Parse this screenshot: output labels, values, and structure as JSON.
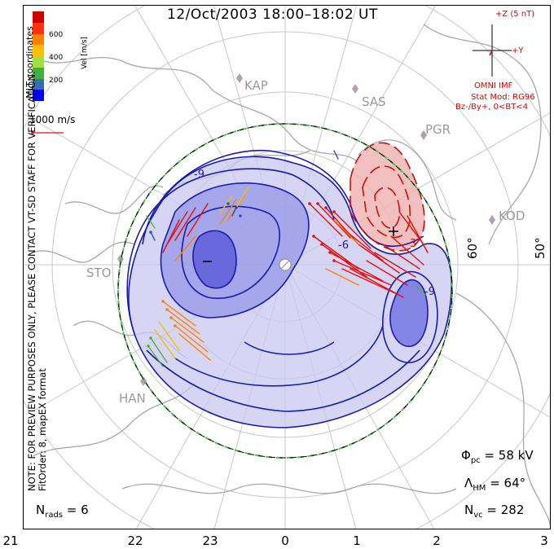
{
  "title": "12/Oct/2003  18:00–18:02 UT",
  "mlt_ticks": [
    "21",
    "22",
    "23",
    "0",
    "1",
    "2",
    "3"
  ],
  "lat_labels": [
    "60°",
    "50°"
  ],
  "stations": [
    "KAP",
    "SAS",
    "PGR",
    "KOD",
    "STO",
    "HAN"
  ],
  "colorbar": {
    "label": "Vel [m/s]",
    "ticks": [
      "600",
      "400",
      "200"
    ],
    "colors": [
      "#d00000",
      "#ff3010",
      "#ff8000",
      "#ffc000",
      "#a0e040",
      "#40b040",
      "#3070b0",
      "#0000ff"
    ]
  },
  "coord_label": "MLT coordinates",
  "vector_scale": "1000 m/s",
  "imf": {
    "z_label": "+Z (5 nT)",
    "y_label": "+Y",
    "source": "OMNI IMF",
    "stat_mod": "Stat Mod: RG96",
    "condition": "Bz-/By+, 0<BT<4"
  },
  "stats": {
    "phi_pc": "58 kV",
    "lambda_hm": "64°",
    "n_vc": "282",
    "n_rads": "6"
  },
  "notes": {
    "line1": "NOTE: FOR PREVIEW PURPOSES ONLY, PLEASE CONTACT VT-SD STAFF FOR VERIFICATION.",
    "line2": "FitOrder: 8, mapEX format"
  },
  "colors": {
    "negative_cell": "#4040e0",
    "positive_cell": "#e06060",
    "contour_neg": "#1a1ab0",
    "contour_pos": "#c81010",
    "grid": "#c0c0c0",
    "coastline": "#a8a8a8",
    "hmb": "#50c050"
  }
}
